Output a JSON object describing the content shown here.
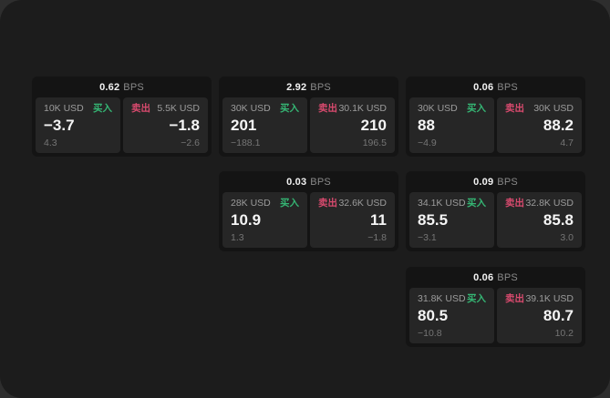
{
  "labels": {
    "bps_unit": "BPS",
    "buy": "买入",
    "sell": "卖出"
  },
  "colors": {
    "window_bg": "#1c1c1c",
    "card_bg": "#141414",
    "panel_bg": "#262626",
    "buy_green": "#35b674",
    "sell_red": "#d84a6e"
  },
  "cards": [
    {
      "bps": "0.62",
      "buy": {
        "amount": "10K USD",
        "price": "−3.7",
        "sub": "4.3"
      },
      "sell": {
        "amount": "5.5K USD",
        "price": "−1.8",
        "sub": "−2.6"
      }
    },
    {
      "bps": "2.92",
      "buy": {
        "amount": "30K USD",
        "price": "201",
        "sub": "−188.1"
      },
      "sell": {
        "amount": "30.1K USD",
        "price": "210",
        "sub": "196.5"
      }
    },
    {
      "bps": "0.06",
      "buy": {
        "amount": "30K USD",
        "price": "88",
        "sub": "−4.9"
      },
      "sell": {
        "amount": "30K USD",
        "price": "88.2",
        "sub": "4.7"
      }
    },
    {
      "bps": "0.03",
      "buy": {
        "amount": "28K USD",
        "price": "10.9",
        "sub": "1.3"
      },
      "sell": {
        "amount": "32.6K USD",
        "price": "11",
        "sub": "−1.8"
      }
    },
    {
      "bps": "0.09",
      "buy": {
        "amount": "34.1K USD",
        "price": "85.5",
        "sub": "−3.1"
      },
      "sell": {
        "amount": "32.8K USD",
        "price": "85.8",
        "sub": "3.0"
      }
    },
    {
      "bps": "0.06",
      "buy": {
        "amount": "31.8K USD",
        "price": "80.5",
        "sub": "−10.8"
      },
      "sell": {
        "amount": "39.1K USD",
        "price": "80.7",
        "sub": "10.2"
      }
    }
  ]
}
